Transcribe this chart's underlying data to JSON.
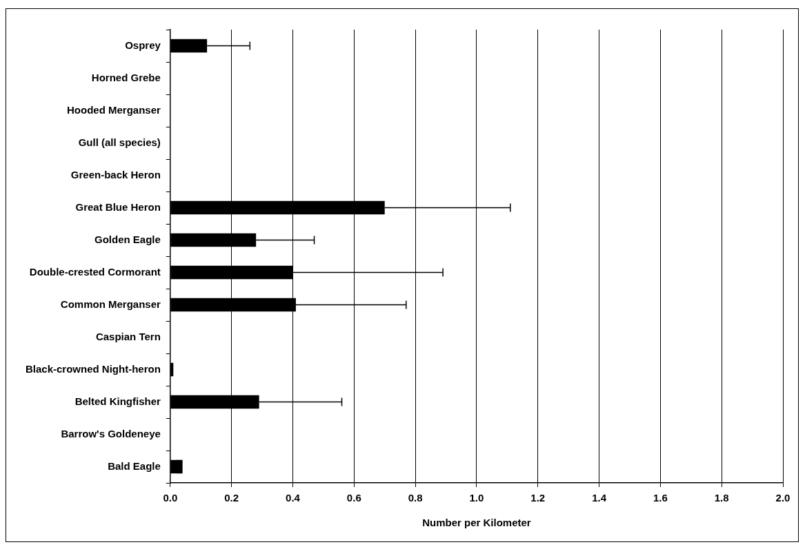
{
  "chart_data": {
    "type": "bar",
    "orientation": "horizontal",
    "xlabel": "Number per Kilometer",
    "categories": [
      "Osprey",
      "Horned Grebe",
      "Hooded Merganser",
      "Gull (all species)",
      "Green-back Heron",
      "Great Blue Heron",
      "Golden Eagle",
      "Double-crested Cormorant",
      "Common Merganser",
      "Caspian Tern",
      "Black-crowned Night-heron",
      "Belted Kingfisher",
      "Barrow's Goldeneye",
      "Bald Eagle"
    ],
    "values": [
      0.12,
      0,
      0,
      0,
      0,
      0.7,
      0.28,
      0.4,
      0.41,
      0,
      0.01,
      0.29,
      0,
      0.04
    ],
    "errors": [
      [
        0.12,
        0.26
      ],
      null,
      null,
      null,
      null,
      [
        0.7,
        1.11
      ],
      [
        0.28,
        0.47
      ],
      [
        0.4,
        0.89
      ],
      [
        0.41,
        0.77
      ],
      null,
      null,
      [
        0.29,
        0.56
      ],
      null,
      null
    ],
    "color": "#000000",
    "xlim": [
      0,
      2
    ],
    "xticks": [
      {
        "value": 0,
        "label": "0.0"
      },
      {
        "value": 0.2,
        "label": "0.2"
      },
      {
        "value": 0.4,
        "label": "0.4"
      },
      {
        "value": 0.6,
        "label": "0.6"
      },
      {
        "value": 0.8,
        "label": "0.8"
      },
      {
        "value": 1,
        "label": "1.0"
      },
      {
        "value": 1.2,
        "label": "1.2"
      },
      {
        "value": 1.4,
        "label": "1.4"
      },
      {
        "value": 1.6,
        "label": "1.6"
      },
      {
        "value": 1.8,
        "label": "1.8"
      },
      {
        "value": 2,
        "label": "2.0"
      }
    ],
    "grid": "x"
  }
}
